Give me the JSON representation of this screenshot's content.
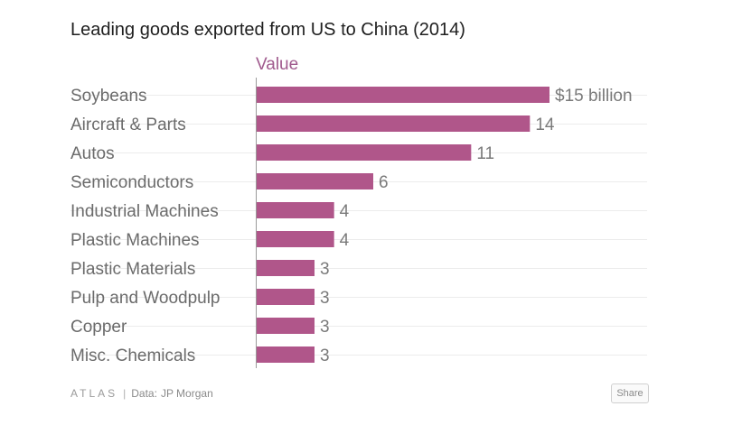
{
  "title": "Leading goods exported from US to China (2014)",
  "footer": {
    "brand": "ATLAS",
    "separator": "|",
    "source_prefix": "Data:",
    "source": "JP Morgan",
    "share_label": "Share"
  },
  "colors": {
    "bar": "#b0568a",
    "series_header": "#a05a8e",
    "grid": "#ececec",
    "axis": "#9a9a9a"
  },
  "chart_data": {
    "type": "bar",
    "orientation": "horizontal",
    "title": "Leading goods exported from US to China (2014)",
    "series": [
      {
        "name": "Value",
        "values": [
          15,
          14,
          11,
          6,
          4,
          4,
          3,
          3,
          3,
          3
        ]
      }
    ],
    "categories": [
      "Soybeans",
      "Aircraft & Parts",
      "Autos",
      "Semiconductors",
      "Industrial Machines",
      "Plastic Machines",
      "Plastic Materials",
      "Pulp and Woodpulp",
      "Copper",
      "Misc. Chemicals"
    ],
    "value_labels": [
      "$15 billion",
      "14",
      "11",
      "6",
      "4",
      "4",
      "3",
      "3",
      "3",
      "3"
    ],
    "xlim": [
      0,
      15
    ],
    "grid": true,
    "legend": "none"
  }
}
